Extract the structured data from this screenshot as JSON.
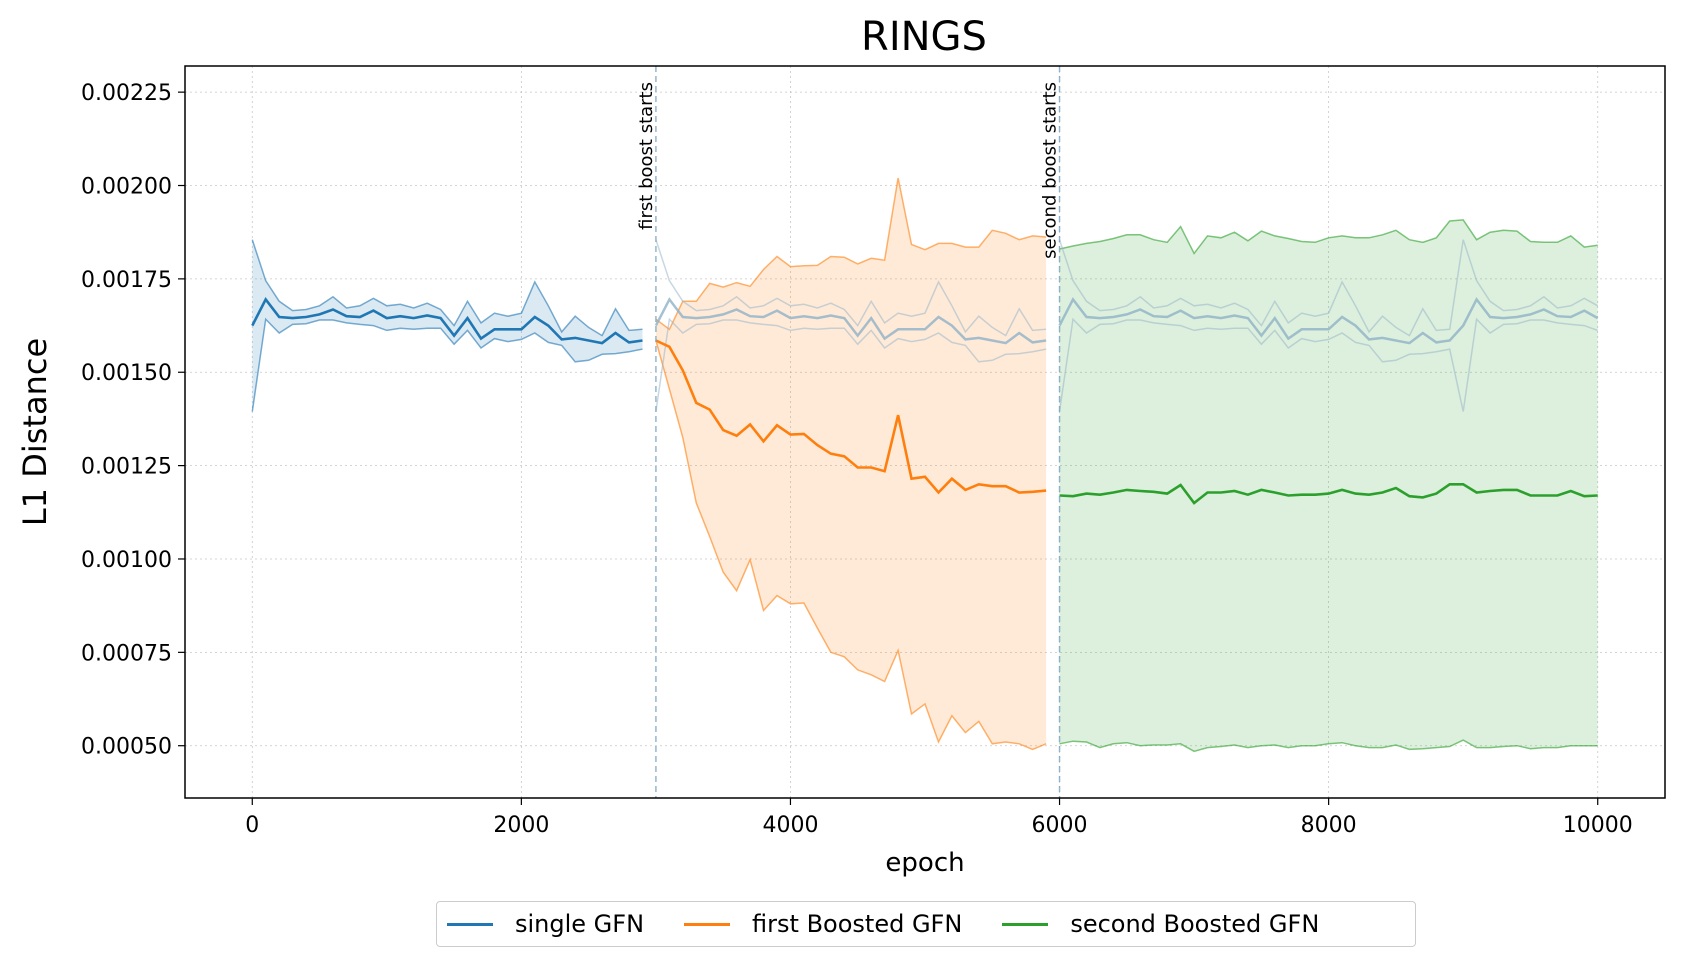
{
  "chart_data": {
    "type": "line",
    "title": "RINGS",
    "xlabel": "epoch",
    "ylabel": "L1 Distance",
    "xlim": [
      -500,
      10500
    ],
    "ylim": [
      0.00036,
      0.00232
    ],
    "xticks": [
      0,
      2000,
      4000,
      6000,
      8000,
      10000
    ],
    "xtick_labels": [
      "0",
      "2000",
      "4000",
      "6000",
      "8000",
      "10000"
    ],
    "yticks": [
      0.0005,
      0.00075,
      0.001,
      0.00125,
      0.0015,
      0.00175,
      0.002,
      0.00225
    ],
    "ytick_labels": [
      "0.00050",
      "0.00075",
      "0.00100",
      "0.00125",
      "0.00150",
      "0.00175",
      "0.00200",
      "0.00225"
    ],
    "grid": true,
    "legend_position": "bottom-center",
    "annotations": [
      {
        "x": 3000,
        "text": "first boost starts"
      },
      {
        "x": 6000,
        "text": "second boost starts"
      }
    ],
    "series": [
      {
        "name": "single GFN",
        "color": "#1f77b4",
        "x": [
          0,
          100,
          200,
          300,
          400,
          500,
          600,
          700,
          800,
          900,
          1000,
          1100,
          1200,
          1300,
          1400,
          1500,
          1600,
          1700,
          1800,
          1900,
          2000,
          2100,
          2200,
          2300,
          2400,
          2500,
          2600,
          2700,
          2800,
          2900
        ],
        "mean": [
          0.001625,
          0.001695,
          0.001648,
          0.001645,
          0.001648,
          0.001655,
          0.001668,
          0.00165,
          0.001648,
          0.001665,
          0.001645,
          0.00165,
          0.001645,
          0.001652,
          0.001645,
          0.001598,
          0.001645,
          0.00159,
          0.001615,
          0.001615,
          0.001615,
          0.001648,
          0.001625,
          0.001588,
          0.001592,
          0.001585,
          0.001578,
          0.001605,
          0.00158,
          0.001585
        ],
        "upper": [
          0.001855,
          0.001745,
          0.00169,
          0.001665,
          0.001668,
          0.001678,
          0.001702,
          0.001672,
          0.001678,
          0.001698,
          0.001678,
          0.001682,
          0.001672,
          0.001685,
          0.001668,
          0.001625,
          0.00169,
          0.001632,
          0.001658,
          0.00165,
          0.001658,
          0.001742,
          0.001678,
          0.001608,
          0.00165,
          0.00162,
          0.001598,
          0.00167,
          0.001612,
          0.001615
        ],
        "lower": [
          0.001395,
          0.001642,
          0.001605,
          0.001628,
          0.00163,
          0.00164,
          0.00164,
          0.001632,
          0.001628,
          0.001625,
          0.001612,
          0.001618,
          0.001615,
          0.001618,
          0.001618,
          0.001575,
          0.001612,
          0.001565,
          0.00159,
          0.001582,
          0.001588,
          0.001605,
          0.00158,
          0.001572,
          0.001528,
          0.001532,
          0.001548,
          0.00155,
          0.001555,
          0.001562
        ]
      },
      {
        "name": "first Boosted GFN",
        "color": "#ff7f0e",
        "x": [
          3000,
          3100,
          3200,
          3300,
          3400,
          3500,
          3600,
          3700,
          3800,
          3900,
          4000,
          4100,
          4200,
          4300,
          4400,
          4500,
          4600,
          4700,
          4800,
          4900,
          5000,
          5100,
          5200,
          5300,
          5400,
          5500,
          5600,
          5700,
          5800,
          5900
        ],
        "mean": [
          0.001585,
          0.001568,
          0.001505,
          0.001418,
          0.0014,
          0.001345,
          0.00133,
          0.00136,
          0.001315,
          0.001358,
          0.001333,
          0.001335,
          0.001305,
          0.001282,
          0.001275,
          0.001245,
          0.001245,
          0.001235,
          0.001385,
          0.001215,
          0.00122,
          0.001178,
          0.001215,
          0.001185,
          0.0012,
          0.001195,
          0.001195,
          0.001178,
          0.00118,
          0.001183
        ],
        "upper": [
          0.001642,
          0.001615,
          0.00169,
          0.00169,
          0.001738,
          0.001728,
          0.00174,
          0.00173,
          0.001775,
          0.00181,
          0.001783,
          0.001785,
          0.001786,
          0.00181,
          0.001808,
          0.00179,
          0.001805,
          0.0018,
          0.00202,
          0.001842,
          0.001828,
          0.001845,
          0.001845,
          0.001835,
          0.001835,
          0.00188,
          0.001872,
          0.001855,
          0.001865,
          0.001862
        ],
        "lower": [
          0.001585,
          0.001455,
          0.001325,
          0.00115,
          0.00106,
          0.000965,
          0.000915,
          0.000998,
          0.000862,
          0.000902,
          0.00088,
          0.000882,
          0.000815,
          0.00075,
          0.000738,
          0.000703,
          0.00069,
          0.000672,
          0.000755,
          0.000585,
          0.000612,
          0.00051,
          0.00058,
          0.000535,
          0.000565,
          0.000505,
          0.00051,
          0.000505,
          0.00049,
          0.000505
        ]
      },
      {
        "name": "second Boosted GFN",
        "color": "#2ca02c",
        "x": [
          6000,
          6100,
          6200,
          6300,
          6400,
          6500,
          6600,
          6700,
          6800,
          6900,
          7000,
          7100,
          7200,
          7300,
          7400,
          7500,
          7600,
          7700,
          7800,
          7900,
          8000,
          8100,
          8200,
          8300,
          8400,
          8500,
          8600,
          8700,
          8800,
          8900,
          9000,
          9100,
          9200,
          9300,
          9400,
          9500,
          9600,
          9700,
          9800,
          9900,
          10000
        ],
        "mean": [
          0.00117,
          0.001168,
          0.001175,
          0.001172,
          0.001178,
          0.001185,
          0.001182,
          0.00118,
          0.001175,
          0.001198,
          0.00115,
          0.001178,
          0.001178,
          0.001182,
          0.001172,
          0.001185,
          0.001178,
          0.00117,
          0.001172,
          0.001172,
          0.001175,
          0.001185,
          0.001175,
          0.001172,
          0.001178,
          0.00119,
          0.001168,
          0.001165,
          0.001175,
          0.0012,
          0.0012,
          0.001178,
          0.001182,
          0.001185,
          0.001185,
          0.00117,
          0.00117,
          0.00117,
          0.001182,
          0.001168,
          0.00117
        ],
        "upper": [
          0.00183,
          0.001838,
          0.001845,
          0.00185,
          0.001858,
          0.001868,
          0.001868,
          0.001855,
          0.001848,
          0.00189,
          0.001818,
          0.001865,
          0.00186,
          0.001875,
          0.001852,
          0.001878,
          0.001865,
          0.001858,
          0.00185,
          0.001848,
          0.00186,
          0.001865,
          0.00186,
          0.00186,
          0.001868,
          0.00188,
          0.001855,
          0.001848,
          0.00186,
          0.001905,
          0.001908,
          0.001855,
          0.001875,
          0.00188,
          0.001878,
          0.00185,
          0.001848,
          0.001848,
          0.001865,
          0.001835,
          0.00184
        ],
        "lower": [
          0.000505,
          0.000512,
          0.00051,
          0.000495,
          0.000505,
          0.000508,
          0.0005,
          0.000502,
          0.000502,
          0.000505,
          0.000485,
          0.000495,
          0.000498,
          0.000502,
          0.000495,
          0.0005,
          0.000502,
          0.000495,
          0.0005,
          0.0005,
          0.000505,
          0.000508,
          0.0005,
          0.000495,
          0.000495,
          0.000502,
          0.00049,
          0.000492,
          0.000495,
          0.000498,
          0.000515,
          0.000495,
          0.000495,
          0.000498,
          0.0005,
          0.000492,
          0.000495,
          0.000495,
          0.0005,
          0.0005,
          0.0005
        ]
      }
    ]
  }
}
